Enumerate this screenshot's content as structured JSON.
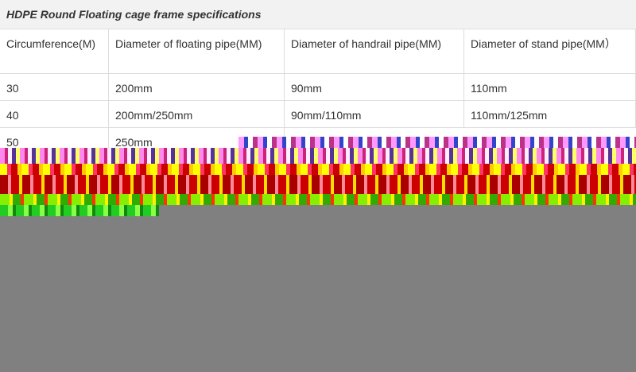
{
  "header": {
    "title": "HDPE Round Floating cage frame specifications"
  },
  "table": {
    "columns": [
      "Circumference(M)",
      "Diameter of floating pipe(MM)",
      "Diameter of handrail pipe(MM)",
      "Diameter of stand pipe(MM）"
    ],
    "rows": [
      [
        "30",
        "200mm",
        "90mm",
        "110mm"
      ],
      [
        "40",
        "200mm/250mm",
        "90mm/110mm",
        "110mm/125mm"
      ],
      [
        "50",
        "250mm"
      ]
    ]
  }
}
